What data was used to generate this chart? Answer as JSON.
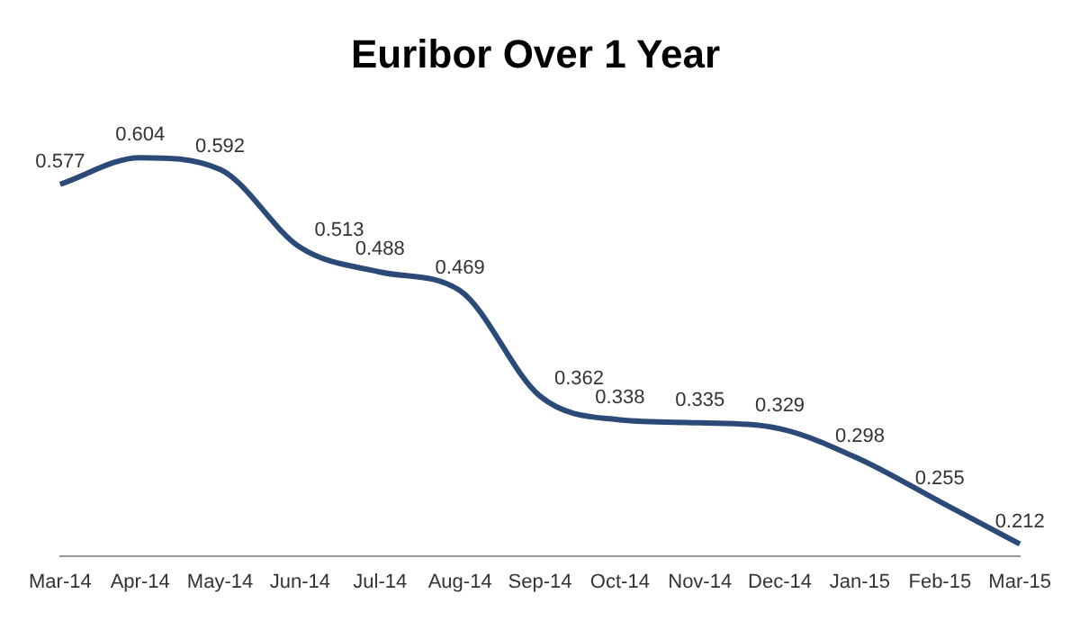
{
  "chart_data": {
    "type": "line",
    "title": "Euribor Over 1 Year",
    "categories": [
      "Mar-14",
      "Apr-14",
      "May-14",
      "Jun-14",
      "Jul-14",
      "Aug-14",
      "Sep-14",
      "Oct-14",
      "Nov-14",
      "Dec-14",
      "Jan-15",
      "Feb-15",
      "Mar-15"
    ],
    "series": [
      {
        "color": "#2b4a78",
        "values": [
          0.577,
          0.604,
          0.592,
          0.513,
          0.488,
          0.469,
          0.362,
          0.338,
          0.335,
          0.329,
          0.298,
          0.255,
          0.212
        ]
      }
    ],
    "data_labels": true,
    "grid": false,
    "legend": false,
    "marker": "none",
    "tick_labels": "x"
  }
}
